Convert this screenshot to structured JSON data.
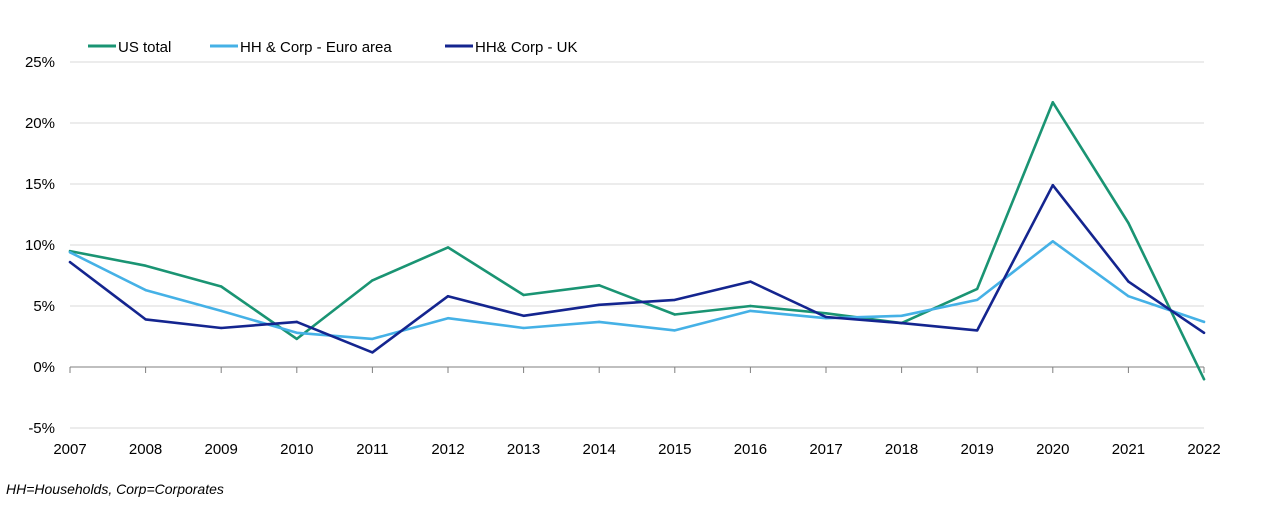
{
  "chart_data": {
    "type": "line",
    "title": "",
    "xlabel": "",
    "ylabel": "",
    "categories": [
      "2007",
      "2008",
      "2009",
      "2010",
      "2011",
      "2012",
      "2013",
      "2014",
      "2015",
      "2016",
      "2017",
      "2018",
      "2019",
      "2020",
      "2021",
      "2022"
    ],
    "ylim": [
      -5,
      25
    ],
    "yticks": [
      -5,
      0,
      5,
      10,
      15,
      20,
      25
    ],
    "ytick_labels": [
      "-5%",
      "0%",
      "5%",
      "10%",
      "15%",
      "20%",
      "25%"
    ],
    "grid": true,
    "legend_position": "top-left",
    "series": [
      {
        "name": "US total",
        "color": "#1a9473",
        "values": [
          9.5,
          8.3,
          6.6,
          2.3,
          7.1,
          9.8,
          5.9,
          6.7,
          4.3,
          5.0,
          4.4,
          3.6,
          6.4,
          21.7,
          11.8,
          -1.0
        ]
      },
      {
        "name": "HH & Corp - Euro area",
        "color": "#45b1e6",
        "values": [
          9.4,
          6.3,
          4.6,
          2.8,
          2.3,
          4.0,
          3.2,
          3.7,
          3.0,
          4.6,
          4.0,
          4.2,
          5.5,
          10.3,
          5.8,
          3.7
        ]
      },
      {
        "name": "HH& Corp - UK",
        "color": "#14258f",
        "values": [
          8.6,
          3.9,
          3.2,
          3.7,
          1.2,
          5.8,
          4.2,
          5.1,
          5.5,
          7.0,
          4.1,
          3.6,
          3.0,
          14.9,
          7.0,
          2.8
        ]
      }
    ]
  },
  "footnote": "HH=Households, Corp=Corporates"
}
